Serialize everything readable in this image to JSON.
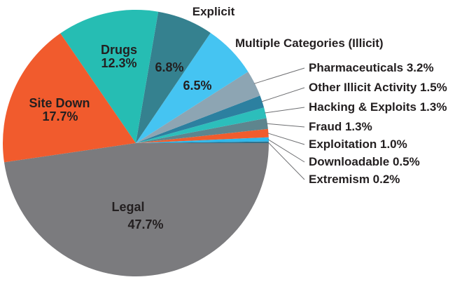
{
  "chart_data": {
    "type": "pie",
    "title": "",
    "background": "#ffffff",
    "text_color": "#231f20",
    "leader_line_color": "#6d6e71",
    "legend_position": "none",
    "start_angle_deg": 0,
    "direction": "counterclockwise",
    "slices": [
      {
        "id": "extremism",
        "label": "Extremism",
        "value": 0.2,
        "display": "0.2%",
        "color": "#31708a",
        "label_style": "leader"
      },
      {
        "id": "downloadable",
        "label": "Downloadable",
        "value": 0.5,
        "display": "0.5%",
        "color": "#2fb9ec",
        "label_style": "leader"
      },
      {
        "id": "exploitation",
        "label": "Exploitation",
        "value": 1.0,
        "display": "1.0%",
        "color": "#f15c2d",
        "label_style": "leader"
      },
      {
        "id": "fraud",
        "label": "Fraud",
        "value": 1.3,
        "display": "1.3%",
        "color": "#5e858e",
        "label_style": "leader"
      },
      {
        "id": "hacking-exploits",
        "label": "Hacking & Exploits",
        "value": 1.3,
        "display": "1.3%",
        "color": "#2cbebb",
        "label_style": "leader"
      },
      {
        "id": "other-illicit-activity",
        "label": "Other Illicit Activity",
        "value": 1.5,
        "display": "1.5%",
        "color": "#2c80a0",
        "label_style": "leader"
      },
      {
        "id": "pharmaceuticals",
        "label": "Pharmaceuticals",
        "value": 3.2,
        "display": "3.2%",
        "color": "#8da5b3",
        "label_style": "leader"
      },
      {
        "id": "multiple-categories",
        "label": "Multiple Categories (Illicit)",
        "value": 6.5,
        "display": "6.5%",
        "color": "#45c4f2",
        "label_style": "inside-value-outside-name"
      },
      {
        "id": "explicit",
        "label": "Explicit",
        "value": 6.8,
        "display": "6.8%",
        "color": "#35818f",
        "label_style": "inside-value-outside-name"
      },
      {
        "id": "drugs",
        "label": "Drugs",
        "value": 12.3,
        "display": "12.3%",
        "color": "#26bdb3",
        "label_style": "inside"
      },
      {
        "id": "site-down",
        "label": "Site Down",
        "value": 17.7,
        "display": "17.7%",
        "color": "#f15b2d",
        "label_style": "inside"
      },
      {
        "id": "legal",
        "label": "Legal",
        "value": 47.7,
        "display": "47.7%",
        "color": "#7b7b7e",
        "label_style": "inside"
      }
    ]
  }
}
